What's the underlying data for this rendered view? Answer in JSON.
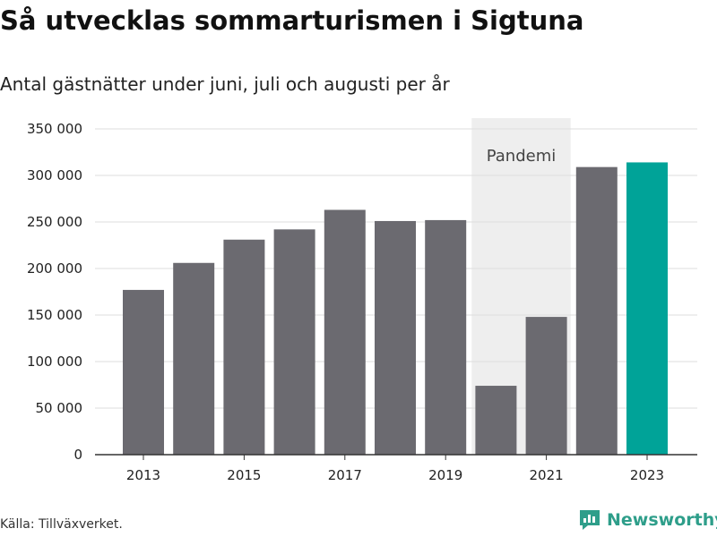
{
  "header": {
    "title": "Så utvecklas sommarturismen i Sigtuna",
    "subtitle": "Antal gästnätter under juni, juli och augusti per år"
  },
  "footer": {
    "source": "Källa: Tillväxverket.",
    "brand": "Newsworthy"
  },
  "colors": {
    "bar": "#6b6a70",
    "highlight": "#00a398",
    "band": "#eeeeee",
    "grid": "#dddddd",
    "brand": "#2e9e8a"
  },
  "chart_data": {
    "type": "bar",
    "categories": [
      "2013",
      "2014",
      "2015",
      "2016",
      "2017",
      "2018",
      "2019",
      "2020",
      "2021",
      "2022",
      "2023"
    ],
    "values": [
      177000,
      206000,
      231000,
      242000,
      263000,
      251000,
      252000,
      74000,
      148000,
      309000,
      314000
    ],
    "highlight_category": "2023",
    "x_tick_labels": [
      "2013",
      "2015",
      "2017",
      "2019",
      "2021",
      "2023"
    ],
    "y_ticks": [
      0,
      50000,
      100000,
      150000,
      200000,
      250000,
      300000,
      350000
    ],
    "y_tick_labels": [
      "0",
      "50 000",
      "100 000",
      "150 000",
      "200 000",
      "250 000",
      "300 000",
      "350 000"
    ],
    "ylim": [
      0,
      350000
    ],
    "grid": true,
    "annotation": {
      "label": "Pandemi",
      "from_category": "2020",
      "to_category": "2021"
    }
  }
}
